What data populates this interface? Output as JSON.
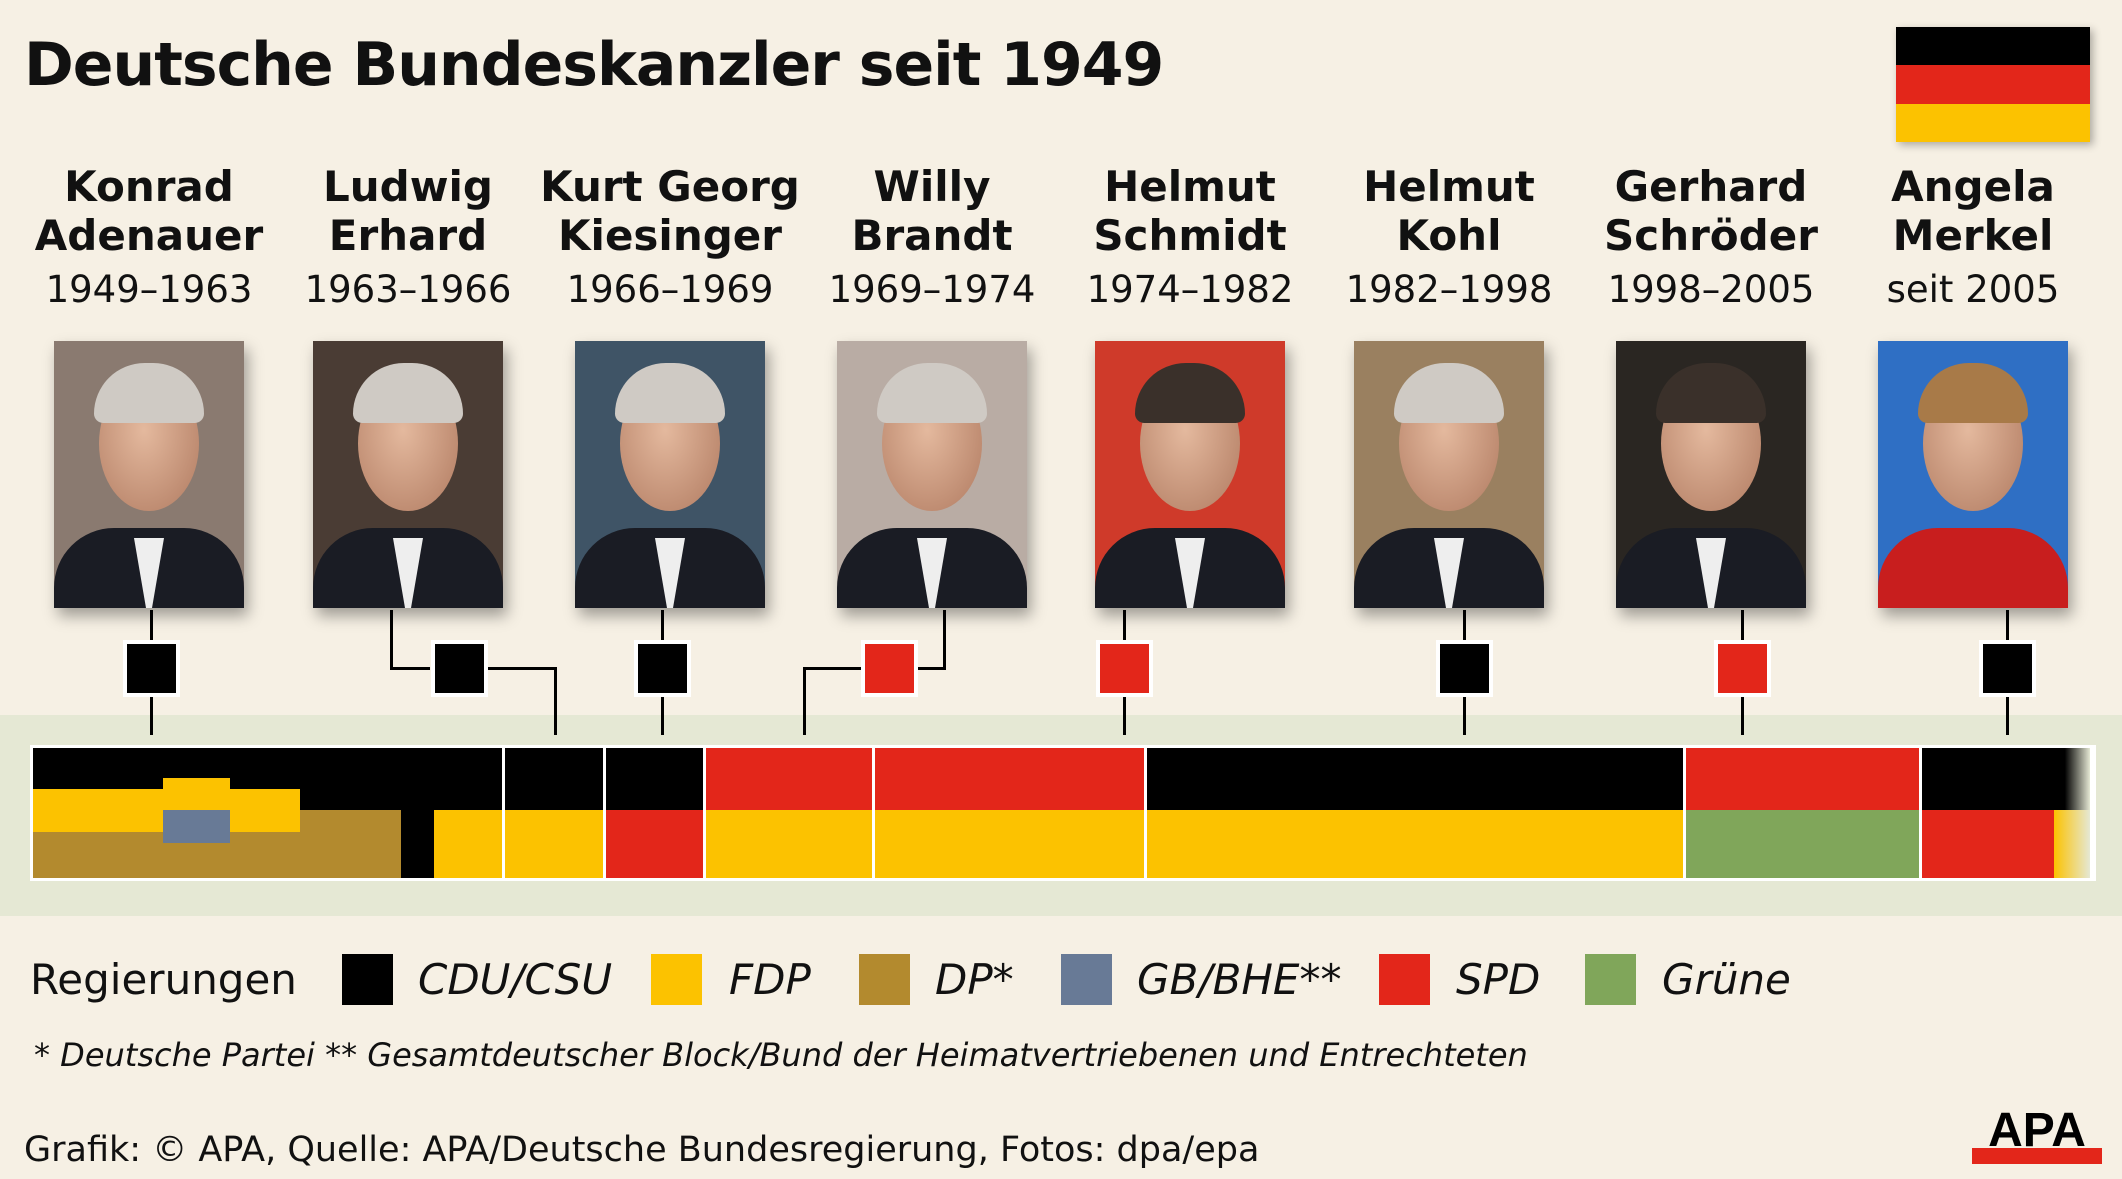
{
  "title": "Deutsche Bundeskanzler seit 1949",
  "flag_colors": [
    "#000000",
    "#e3261a",
    "#fcc200"
  ],
  "chancellors": [
    {
      "first": "Konrad",
      "last": "Adenauer",
      "years": "1949–1963",
      "party_color": "#000000",
      "photo_bg": "#8a7a70"
    },
    {
      "first": "Ludwig",
      "last": "Erhard",
      "years": "1963–1966",
      "party_color": "#000000",
      "photo_bg": "#4a3c34"
    },
    {
      "first": "Kurt Georg",
      "last": "Kiesinger",
      "years": "1966–1969",
      "party_color": "#000000",
      "photo_bg": "#3f5466"
    },
    {
      "first": "Willy",
      "last": "Brandt",
      "years": "1969–1974",
      "party_color": "#e3261a",
      "photo_bg": "#b9aca4"
    },
    {
      "first": "Helmut",
      "last": "Schmidt",
      "years": "1974–1982",
      "party_color": "#e3261a",
      "photo_bg": "#cf3a2a"
    },
    {
      "first": "Helmut",
      "last": "Kohl",
      "years": "1982–1998",
      "party_color": "#000000",
      "photo_bg": "#9a8060"
    },
    {
      "first": "Gerhard",
      "last": "Schröder",
      "years": "1998–2005",
      "party_color": "#e3261a",
      "photo_bg": "#2a2622"
    },
    {
      "first": "Angela",
      "last": "Merkel",
      "years": "seit 2005",
      "party_color": "#000000",
      "photo_bg": "#2f6fc4"
    }
  ],
  "legend": {
    "title": "Regierungen",
    "items": [
      {
        "label": "CDU/CSU",
        "color": "#000000"
      },
      {
        "label": "FDP",
        "color": "#fcc200"
      },
      {
        "label": "DP*",
        "color": "#b38a2e"
      },
      {
        "label": "GB/BHE**",
        "color": "#687a96"
      },
      {
        "label": "SPD",
        "color": "#e3261a"
      },
      {
        "label": "Grüne",
        "color": "#80a65a"
      }
    ]
  },
  "footnote": "* Deutsche Partei  ** Gesamtdeutscher Block/Bund der Heimatvertriebenen und Entrechteten",
  "credit": "Grafik: © APA, Quelle: APA/Deutsche Bundesregierung, Fotos: dpa/epa",
  "logo": "APA"
}
